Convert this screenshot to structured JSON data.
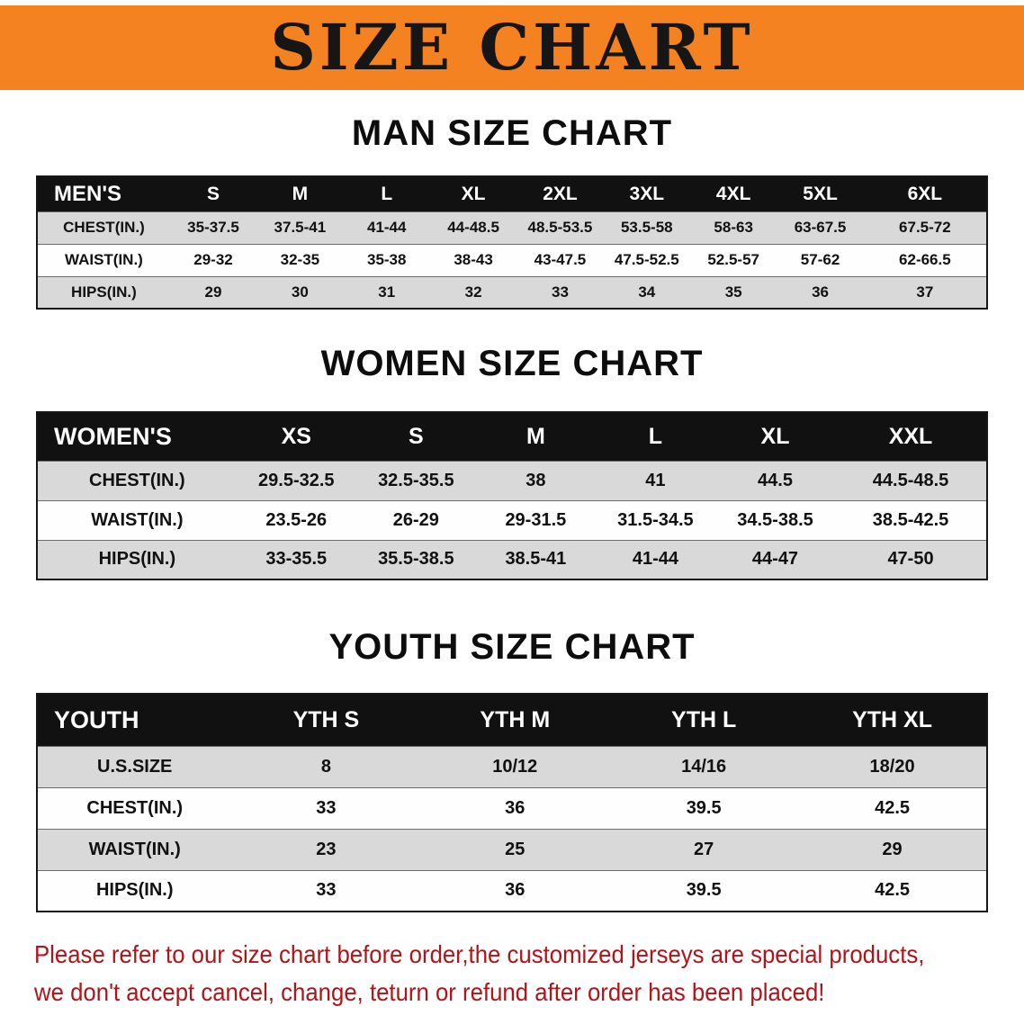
{
  "banner": {
    "title": "SIZE CHART",
    "bg_color": "#f58220",
    "text_color": "#161616"
  },
  "sections": [
    {
      "heading": "MAN SIZE CHART",
      "table": {
        "columns": [
          "MEN'S",
          "S",
          "M",
          "L",
          "XL",
          "2XL",
          "3XL",
          "4XL",
          "5XL",
          "6XL"
        ],
        "rows": [
          {
            "label": "CHEST(IN.)",
            "values": [
              "35-37.5",
              "37.5-41",
              "41-44",
              "44-48.5",
              "48.5-53.5",
              "53.5-58",
              "58-63",
              "63-67.5",
              "67.5-72"
            ]
          },
          {
            "label": "WAIST(IN.)",
            "values": [
              "29-32",
              "32-35",
              "35-38",
              "38-43",
              "43-47.5",
              "47.5-52.5",
              "52.5-57",
              "57-62",
              "62-66.5"
            ]
          },
          {
            "label": "HIPS(IN.)",
            "values": [
              "29",
              "30",
              "31",
              "32",
              "33",
              "34",
              "35",
              "36",
              "37"
            ]
          }
        ]
      }
    },
    {
      "heading": "WOMEN SIZE CHART",
      "table": {
        "columns": [
          "WOMEN'S",
          "XS",
          "S",
          "M",
          "L",
          "XL",
          "XXL"
        ],
        "rows": [
          {
            "label": "CHEST(IN.)",
            "values": [
              "29.5-32.5",
              "32.5-35.5",
              "38",
              "41",
              "44.5",
              "44.5-48.5"
            ]
          },
          {
            "label": "WAIST(IN.)",
            "values": [
              "23.5-26",
              "26-29",
              "29-31.5",
              "31.5-34.5",
              "34.5-38.5",
              "38.5-42.5"
            ]
          },
          {
            "label": "HIPS(IN.)",
            "values": [
              "33-35.5",
              "35.5-38.5",
              "38.5-41",
              "41-44",
              "44-47",
              "47-50"
            ]
          }
        ]
      }
    },
    {
      "heading": "YOUTH SIZE CHART",
      "table": {
        "columns": [
          "YOUTH",
          "YTH S",
          "YTH M",
          "YTH L",
          "YTH XL"
        ],
        "rows": [
          {
            "label": "U.S.SIZE",
            "values": [
              "8",
              "10/12",
              "14/16",
              "18/20"
            ]
          },
          {
            "label": "CHEST(IN.)",
            "values": [
              "33",
              "36",
              "39.5",
              "42.5"
            ]
          },
          {
            "label": "WAIST(IN.)",
            "values": [
              "23",
              "25",
              "27",
              "29"
            ]
          },
          {
            "label": "HIPS(IN.)",
            "values": [
              "33",
              "36",
              "39.5",
              "42.5"
            ]
          }
        ]
      }
    }
  ],
  "disclaimer": {
    "line1": "Please refer to our size chart before order,the customized jerseys are special products,",
    "line2": "we don't accept cancel, change, teturn or refund after order has been placed!",
    "color": "#b01418"
  }
}
